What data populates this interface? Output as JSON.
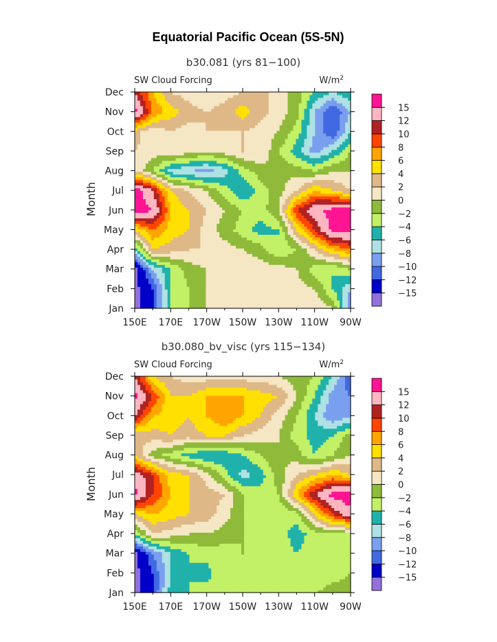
{
  "figure": {
    "title": "Equatorial Pacific Ocean (5S-5N)"
  },
  "chart_data": [
    {
      "type": "heatmap",
      "title": "b30.081 (yrs 81−100)",
      "left_label": "SW Cloud Forcing",
      "right_label_base": "W/m",
      "right_label_sup": "2",
      "ylabel": "Month",
      "xlabel": "",
      "x_ticks": [
        "150E",
        "170E",
        "170W",
        "150W",
        "130W",
        "110W",
        "90W"
      ],
      "y_ticks": [
        "Jan",
        "Feb",
        "Mar",
        "Apr",
        "May",
        "Jun",
        "Jul",
        "Aug",
        "Sep",
        "Oct",
        "Nov",
        "Dec"
      ],
      "colorbar_labels": [
        "15",
        "12",
        "10",
        "8",
        "6",
        "4",
        "2",
        "0",
        "−2",
        "−4",
        "−6",
        "−8",
        "−10",
        "−12",
        "−15"
      ],
      "x_longitude": [
        150,
        160,
        170,
        180,
        190,
        200,
        210,
        220,
        230,
        240,
        250,
        260,
        270
      ],
      "values": [
        [
          -16,
          -12,
          -4,
          -2,
          0,
          0,
          1,
          0,
          1,
          1,
          2,
          0,
          -10
        ],
        [
          -16,
          -12,
          -4,
          -2,
          0,
          1,
          1,
          1,
          1,
          1,
          0,
          -4,
          -8
        ],
        [
          -16,
          -8,
          -4,
          -1,
          0,
          1,
          2,
          1,
          1,
          0,
          -3,
          -4,
          -2
        ],
        [
          -6,
          4,
          3,
          2,
          2,
          1,
          0,
          -1,
          -4,
          -2,
          2,
          6,
          8
        ],
        [
          4,
          8,
          5,
          4,
          1,
          -1,
          -3,
          -5,
          -4,
          4,
          10,
          16,
          16
        ],
        [
          17,
          15,
          6,
          4,
          2,
          0,
          -2,
          -3,
          0,
          10,
          14,
          16,
          17
        ],
        [
          17,
          12,
          4,
          2,
          0,
          -3,
          -6,
          -3,
          -1,
          2,
          6,
          4,
          2
        ],
        [
          2,
          -2,
          -7,
          -8,
          -9,
          -7,
          -3,
          -1,
          0,
          -1,
          -2,
          0,
          0
        ],
        [
          2,
          1,
          2,
          1,
          0,
          1,
          2,
          2,
          -2,
          -5,
          -9,
          -6,
          -2
        ],
        [
          3,
          0,
          2,
          1,
          2,
          2,
          2,
          1,
          0,
          -3,
          -8,
          -12,
          -6
        ],
        [
          16,
          8,
          5,
          3,
          2,
          3,
          5,
          3,
          1,
          -1,
          -8,
          -12,
          -8
        ],
        [
          12,
          6,
          2,
          1,
          0,
          1,
          2,
          3,
          1,
          -1,
          -4,
          -6,
          -4
        ]
      ]
    },
    {
      "type": "heatmap",
      "title": "b30.080_bv_visc (yrs 115−134)",
      "left_label": "SW Cloud Forcing",
      "right_label_base": "W/m",
      "right_label_sup": "2",
      "ylabel": "Month",
      "xlabel": "",
      "x_ticks": [
        "150E",
        "170E",
        "170W",
        "150W",
        "130W",
        "110W",
        "90W"
      ],
      "y_ticks": [
        "Jan",
        "Feb",
        "Mar",
        "Apr",
        "May",
        "Jun",
        "Jul",
        "Aug",
        "Sep",
        "Oct",
        "Nov",
        "Dec"
      ],
      "colorbar_labels": [
        "15",
        "12",
        "10",
        "8",
        "6",
        "4",
        "2",
        "0",
        "−2",
        "−4",
        "−6",
        "−8",
        "−10",
        "−12",
        "−15"
      ],
      "x_longitude": [
        150,
        160,
        170,
        180,
        190,
        200,
        210,
        220,
        230,
        240,
        250,
        260,
        270
      ],
      "values": [
        [
          -16,
          -12,
          -5,
          -4,
          -3,
          -2,
          -3,
          -2,
          -3,
          -4,
          -2,
          -1,
          -1
        ],
        [
          -16,
          -12,
          -6,
          -4,
          -5,
          -2,
          -3,
          -3,
          -4,
          -3,
          -4,
          -3,
          -2
        ],
        [
          -16,
          -10,
          -6,
          -4,
          -3,
          -3,
          -2,
          -3,
          -3,
          -4,
          -3,
          -3,
          -3
        ],
        [
          -4,
          2,
          1,
          0,
          0,
          -1,
          -2,
          -2,
          -3,
          -5,
          -3,
          -2,
          -2
        ],
        [
          4,
          6,
          5,
          4,
          3,
          1,
          -2,
          -3,
          -4,
          -3,
          4,
          10,
          14
        ],
        [
          16,
          10,
          6,
          4,
          3,
          2,
          -2,
          -3,
          -2,
          6,
          12,
          16,
          17
        ],
        [
          14,
          10,
          5,
          4,
          1,
          -3,
          -7,
          -5,
          -1,
          2,
          4,
          6,
          4
        ],
        [
          4,
          -1,
          -3,
          -5,
          -6,
          -6,
          -4,
          -2,
          0,
          -1,
          -4,
          -2,
          0
        ],
        [
          2,
          3,
          4,
          3,
          4,
          4,
          2,
          1,
          0,
          -3,
          -5,
          -4,
          -1
        ],
        [
          12,
          6,
          5,
          4,
          6,
          8,
          6,
          4,
          1,
          -2,
          -6,
          -10,
          -8
        ],
        [
          16,
          10,
          4,
          4,
          6,
          6,
          6,
          5,
          4,
          0,
          -4,
          -9,
          -10
        ],
        [
          12,
          4,
          2,
          1,
          1,
          1,
          1,
          1,
          0,
          -1,
          -2,
          -6,
          -12
        ]
      ]
    }
  ],
  "levels": [
    -15,
    -12,
    -10,
    -8,
    -6,
    -4,
    -2,
    0,
    2,
    4,
    6,
    8,
    10,
    12,
    15
  ],
  "colors": [
    "#9370DB",
    "#0000C8",
    "#4169E1",
    "#7B9FEF",
    "#AEE1E3",
    "#20B2AA",
    "#C2F066",
    "#8FBA3A",
    "#F5E6C4",
    "#DEB887",
    "#FFE000",
    "#FFA500",
    "#FF4500",
    "#B22222",
    "#FFB6C1",
    "#FF1493"
  ]
}
